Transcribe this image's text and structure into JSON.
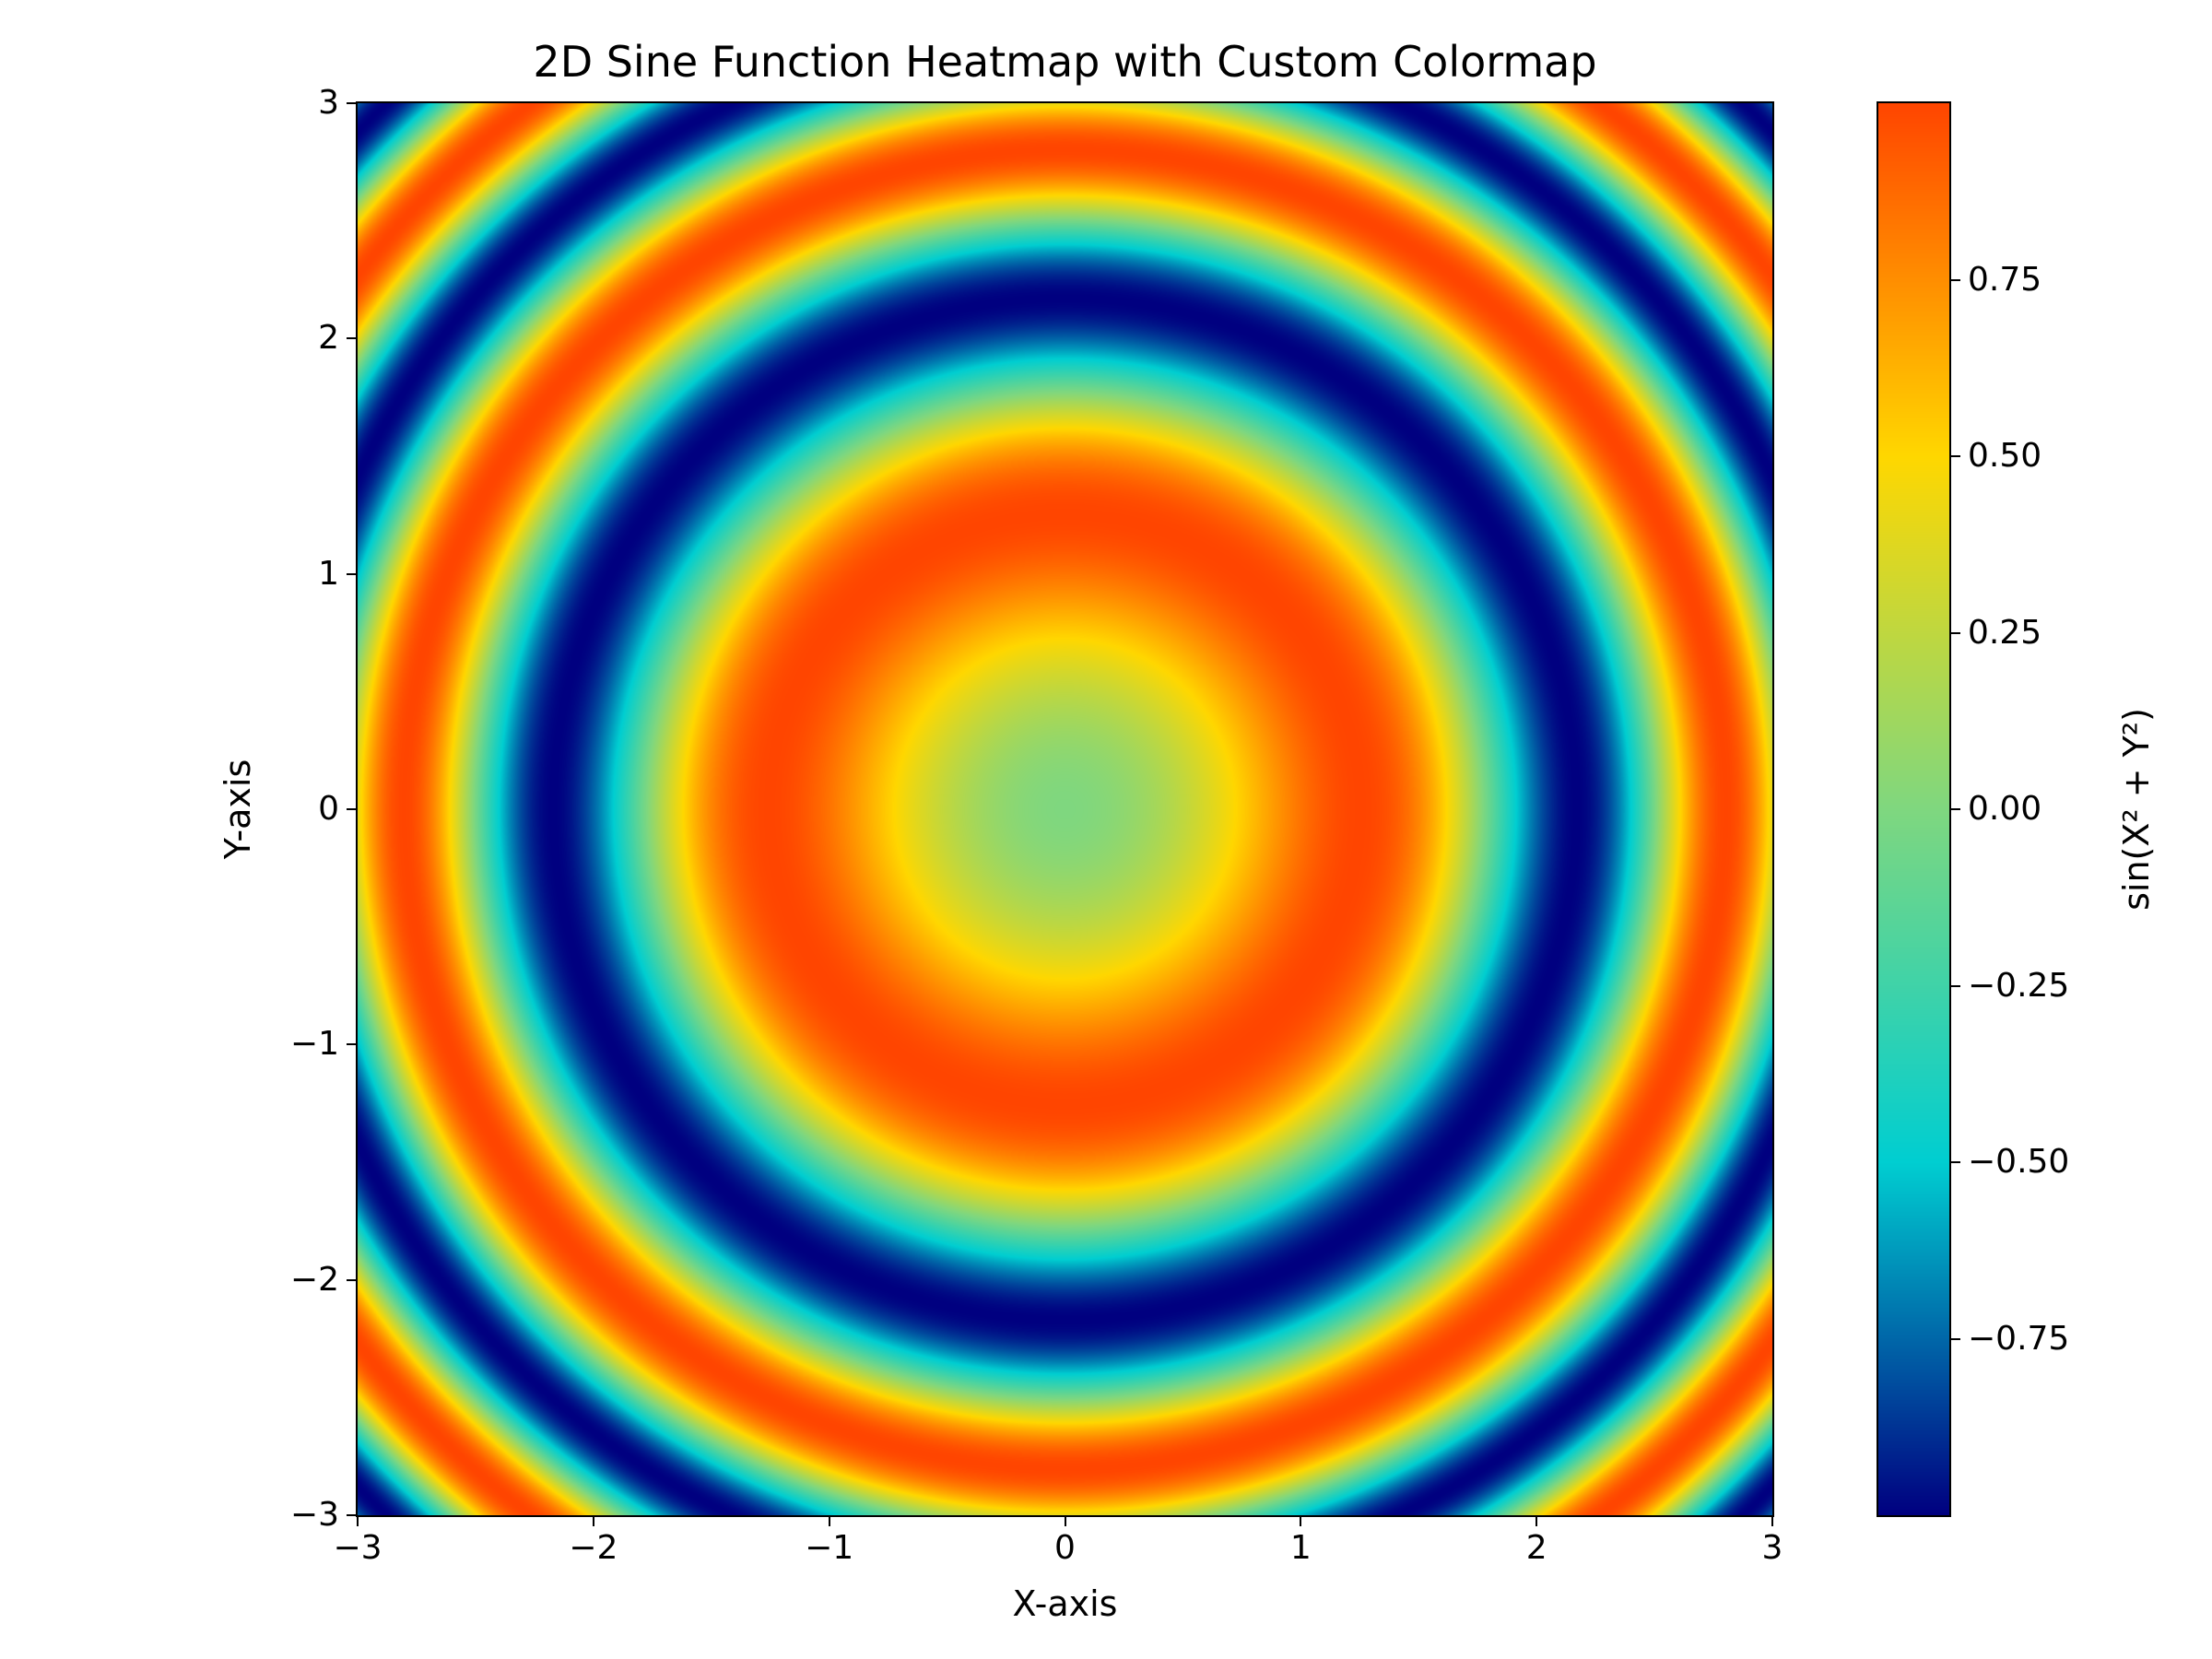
{
  "chart_data": {
    "type": "heatmap",
    "title": "2D Sine Function Heatmap with Custom Colormap",
    "xlabel": "X-axis",
    "ylabel": "Y-axis",
    "function": "sin(X² + Y²)",
    "xlim": [
      -3,
      3
    ],
    "ylim": [
      -3,
      3
    ],
    "x_ticks": [
      -3,
      -2,
      -1,
      0,
      1,
      2,
      3
    ],
    "x_tick_labels": [
      "−3",
      "−2",
      "−1",
      "0",
      "1",
      "2",
      "3"
    ],
    "y_ticks": [
      -3,
      -2,
      -1,
      0,
      1,
      2,
      3
    ],
    "y_tick_labels": [
      "−3",
      "−2",
      "−1",
      "0",
      "1",
      "2",
      "3"
    ],
    "colorbar": {
      "label": "sin(X² + Y²)",
      "range": [
        -1,
        1
      ],
      "ticks": [
        -0.75,
        -0.5,
        -0.25,
        0,
        0.25,
        0.5,
        0.75
      ],
      "tick_labels": [
        "−0.75",
        "−0.50",
        "−0.25",
        "0.00",
        "0.25",
        "0.50",
        "0.75"
      ]
    },
    "colormap_stops": [
      {
        "value": -1.0,
        "color": "#000080"
      },
      {
        "value": -0.5,
        "color": "#00ced1"
      },
      {
        "value": 0.0,
        "color": "#7fd77f"
      },
      {
        "value": 0.5,
        "color": "#ffd700"
      },
      {
        "value": 1.0,
        "color": "#ff4500"
      }
    ],
    "grid": false
  }
}
